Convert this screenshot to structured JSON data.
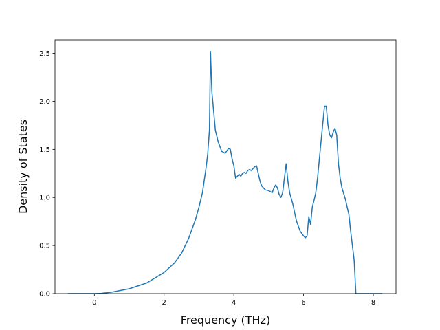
{
  "chart_data": {
    "type": "line",
    "title": "",
    "xlabel": "Frequency (THz)",
    "ylabel": "Density of States",
    "xlim": [
      -1.13,
      8.65
    ],
    "ylim": [
      0,
      2.64
    ],
    "xticks": [
      0,
      2,
      4,
      6,
      8
    ],
    "xtick_labels": [
      "0",
      "2",
      "4",
      "6",
      "8"
    ],
    "yticks": [
      0.0,
      0.5,
      1.0,
      1.5,
      2.0,
      2.5
    ],
    "ytick_labels": [
      "0.0",
      "0.5",
      "1.0",
      "1.5",
      "2.0",
      "2.5"
    ],
    "grid": false,
    "legend": "none",
    "series": [
      {
        "color": "#1f77b4",
        "x": [
          -0.75,
          0.0,
          0.2,
          0.5,
          1.0,
          1.5,
          2.0,
          2.3,
          2.5,
          2.7,
          2.9,
          3.0,
          3.1,
          3.2,
          3.25,
          3.3,
          3.33,
          3.37,
          3.42,
          3.47,
          3.55,
          3.65,
          3.75,
          3.85,
          3.9,
          3.95,
          4.0,
          4.05,
          4.1,
          4.15,
          4.2,
          4.25,
          4.3,
          4.35,
          4.4,
          4.45,
          4.5,
          4.55,
          4.6,
          4.65,
          4.7,
          4.75,
          4.8,
          4.85,
          4.9,
          5.0,
          5.1,
          5.15,
          5.2,
          5.25,
          5.3,
          5.35,
          5.4,
          5.45,
          5.5,
          5.55,
          5.6,
          5.7,
          5.75,
          5.8,
          5.9,
          6.0,
          6.05,
          6.1,
          6.15,
          6.2,
          6.25,
          6.3,
          6.35,
          6.4,
          6.5,
          6.6,
          6.65,
          6.7,
          6.75,
          6.8,
          6.85,
          6.9,
          6.95,
          7.0,
          7.05,
          7.1,
          7.2,
          7.3,
          7.35,
          7.4,
          7.45,
          7.5,
          7.6,
          8.25
        ],
        "y": [
          0.0,
          0.0,
          0.003,
          0.015,
          0.05,
          0.11,
          0.22,
          0.32,
          0.42,
          0.57,
          0.77,
          0.9,
          1.05,
          1.3,
          1.45,
          1.7,
          2.52,
          2.1,
          1.9,
          1.7,
          1.58,
          1.48,
          1.46,
          1.51,
          1.5,
          1.4,
          1.33,
          1.2,
          1.22,
          1.24,
          1.22,
          1.25,
          1.26,
          1.25,
          1.28,
          1.29,
          1.28,
          1.3,
          1.32,
          1.33,
          1.25,
          1.17,
          1.12,
          1.1,
          1.08,
          1.07,
          1.05,
          1.1,
          1.13,
          1.1,
          1.03,
          1.0,
          1.05,
          1.2,
          1.35,
          1.17,
          1.05,
          0.92,
          0.83,
          0.75,
          0.65,
          0.6,
          0.58,
          0.6,
          0.8,
          0.72,
          0.9,
          0.97,
          1.05,
          1.2,
          1.58,
          1.95,
          1.95,
          1.75,
          1.65,
          1.62,
          1.68,
          1.72,
          1.65,
          1.35,
          1.2,
          1.1,
          0.98,
          0.82,
          0.65,
          0.5,
          0.35,
          0.0,
          0.0,
          0.0
        ]
      }
    ]
  }
}
